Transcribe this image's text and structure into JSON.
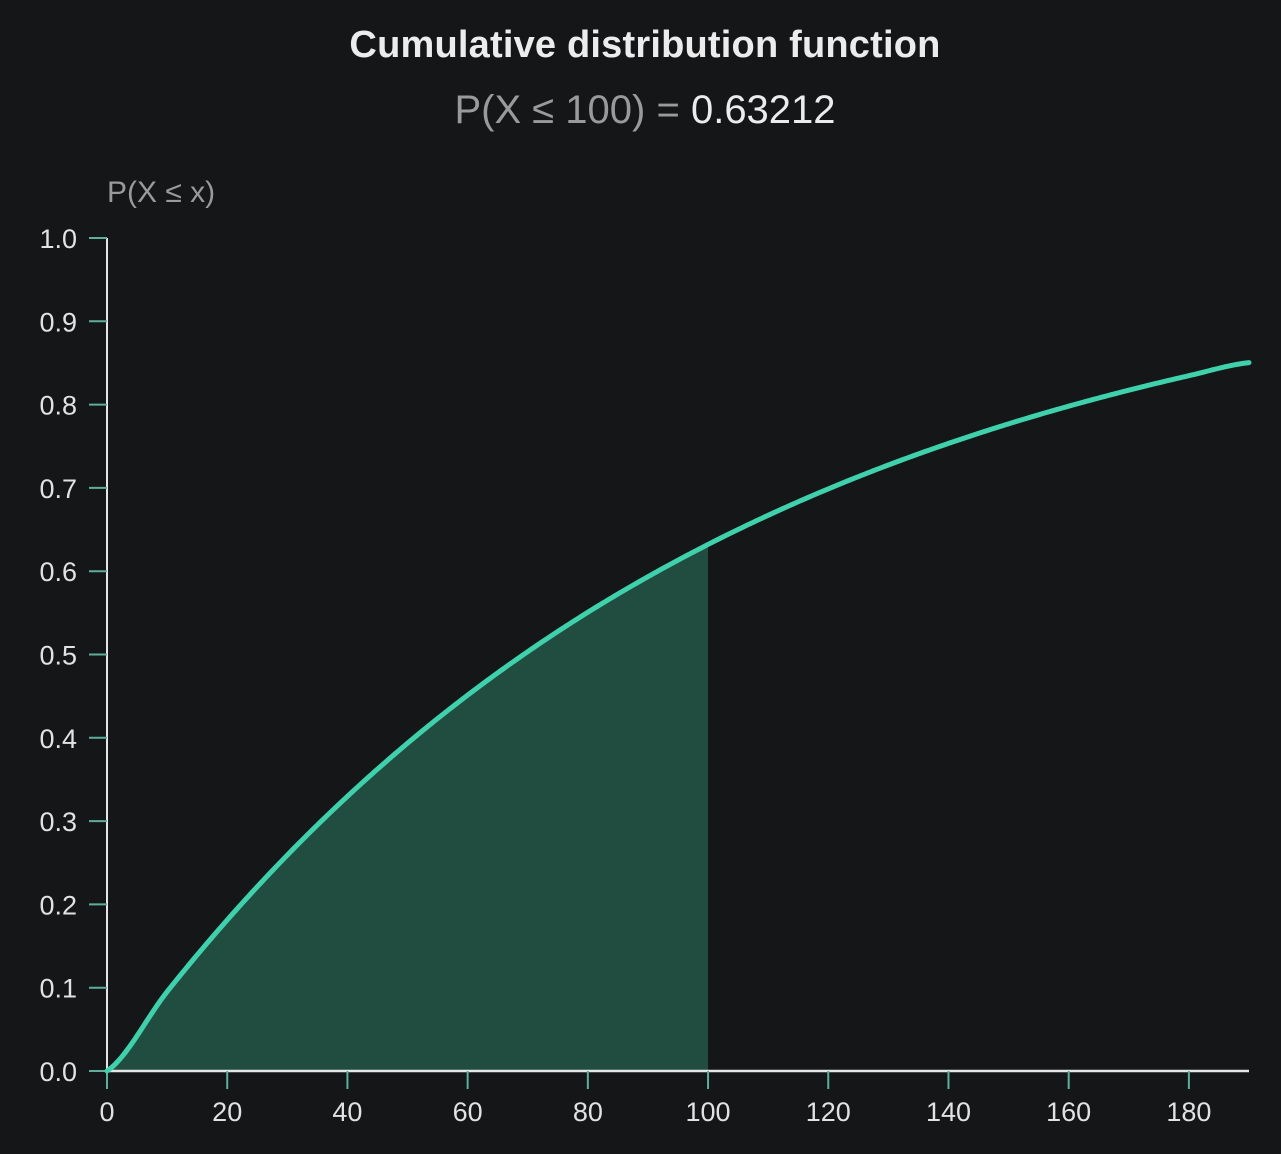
{
  "chart_data": {
    "type": "area",
    "title": "Cumulative distribution function",
    "subtitle_prefix": "P(X ≤ 100) = ",
    "subtitle_value": "0.63212",
    "ylabel": "P(X ≤ x)",
    "xlabel": "",
    "xlim": [
      0,
      190
    ],
    "ylim": [
      0,
      1
    ],
    "x_ticks": [
      "0",
      "20",
      "40",
      "60",
      "80",
      "100",
      "120",
      "140",
      "160",
      "180"
    ],
    "x_tick_values": [
      0,
      20,
      40,
      60,
      80,
      100,
      120,
      140,
      160,
      180
    ],
    "y_ticks": [
      "0.0",
      "0.1",
      "0.2",
      "0.3",
      "0.4",
      "0.5",
      "0.6",
      "0.7",
      "0.8",
      "0.9",
      "1.0"
    ],
    "y_tick_values": [
      0,
      0.1,
      0.2,
      0.3,
      0.4,
      0.5,
      0.6,
      0.7,
      0.8,
      0.9,
      1.0
    ],
    "series": [
      {
        "x": [
          0,
          10,
          20,
          30,
          40,
          50,
          60,
          70,
          80,
          90,
          100,
          110,
          120,
          130,
          140,
          150,
          160,
          170,
          180,
          190
        ],
        "y": [
          0,
          0.0952,
          0.1813,
          0.2592,
          0.3297,
          0.3935,
          0.4512,
          0.5034,
          0.5507,
          0.5934,
          0.6321,
          0.6671,
          0.6988,
          0.7275,
          0.7534,
          0.7769,
          0.7981,
          0.8173,
          0.8347,
          0.8504
        ]
      }
    ],
    "shaded_region": {
      "x_from": 0,
      "x_to": 100
    },
    "grid": false,
    "colors": {
      "line": "#3fd1ac",
      "fill": "#214d41",
      "axis": "#e6e6e6",
      "tick": "#5fae9a"
    }
  }
}
